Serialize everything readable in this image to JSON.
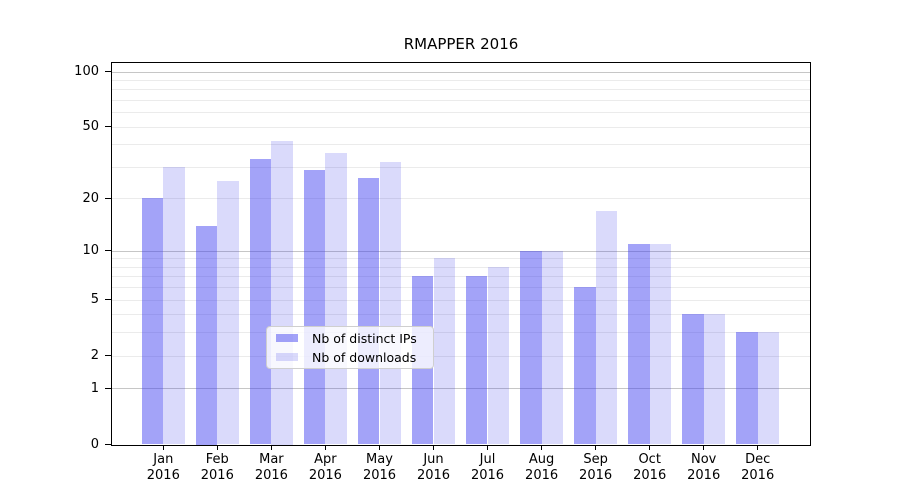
{
  "title": "RMAPPER 2016",
  "chart_data": {
    "type": "bar",
    "title": "RMAPPER 2016",
    "categories": [
      "Jan",
      "Feb",
      "Mar",
      "Apr",
      "May",
      "Jun",
      "Jul",
      "Aug",
      "Sep",
      "Oct",
      "Nov",
      "Dec"
    ],
    "year_label": "2016",
    "series": [
      {
        "name": "Nb of distinct IPs",
        "color": "rgba(60,60,240,0.47)",
        "swatch_hex": "#a6a6f5",
        "values": [
          20,
          14,
          33,
          29,
          26,
          7,
          7,
          10,
          6,
          11,
          4,
          3
        ]
      },
      {
        "name": "Nb of downloads",
        "color": "rgba(50,50,235,0.18)",
        "swatch_hex": "#dcdcf9",
        "values": [
          30,
          25,
          42,
          36,
          32,
          9,
          8,
          10,
          17,
          11,
          4,
          3
        ]
      }
    ],
    "xlabel": "",
    "ylabel": "",
    "y_scale": "log1p",
    "y_tick_values": [
      0,
      1,
      2,
      5,
      10,
      20,
      50,
      100
    ],
    "y_tick_labels": [
      "0",
      "1",
      "2",
      "5",
      "10",
      "20",
      "50",
      "100"
    ],
    "major_gridlines": [
      1,
      10,
      100
    ],
    "minor_gridlines": [
      2,
      3,
      4,
      5,
      6,
      7,
      8,
      9,
      20,
      30,
      40,
      50,
      60,
      70,
      80,
      90
    ],
    "ylim": [
      0,
      111
    ],
    "grid": true,
    "legend_position": "lower center inside",
    "legend_entries": [
      "Nb of distinct IPs",
      "Nb of downloads"
    ]
  },
  "colors": {
    "background": "#ffffff",
    "bar_distinct_ips": "#a6a6f5",
    "bar_downloads": "#dcdcf9",
    "major_grid": "#c6c6c6",
    "minor_grid": "#ebebeb",
    "axis": "#000000",
    "legend_border": "#cfcfcf"
  }
}
